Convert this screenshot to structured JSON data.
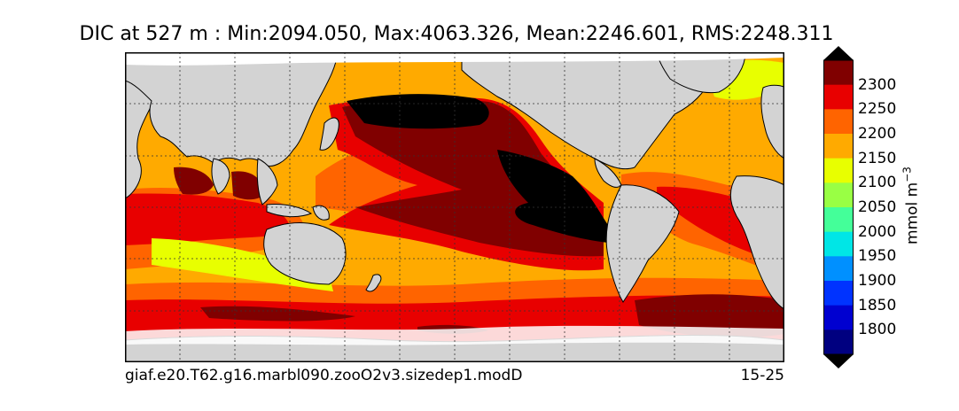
{
  "title": "DIC at 527 m : Min:2094.050, Max:4063.326, Mean:2246.601, RMS:2248.311",
  "footer": {
    "case_name": "giaf.e20.T62.g16.marbl090.zooO2v3.sizedep1.modD",
    "years": "15-25"
  },
  "colorbar": {
    "unit_label": "mmol m",
    "unit_exponent": "−3",
    "ticks": [
      "1800",
      "1850",
      "1900",
      "1950",
      "2000",
      "2050",
      "2100",
      "2150",
      "2200",
      "2250",
      "2300"
    ],
    "under_color": "#000000",
    "over_color": "#000000",
    "colors": [
      "#000080",
      "#0000d0",
      "#0033ff",
      "#0090ff",
      "#00e6e6",
      "#44ff99",
      "#99ff44",
      "#e8ff00",
      "#ffaa00",
      "#ff6400",
      "#e80000",
      "#800000"
    ]
  },
  "map_colors": {
    "land": "#d3d3d3",
    "ice": "#ffffff",
    "c2150": "#e8ff00",
    "c2200": "#ffaa00",
    "c2250": "#ff6400",
    "c2300": "#e80000",
    "c2350": "#800000",
    "over": "#000000"
  }
}
